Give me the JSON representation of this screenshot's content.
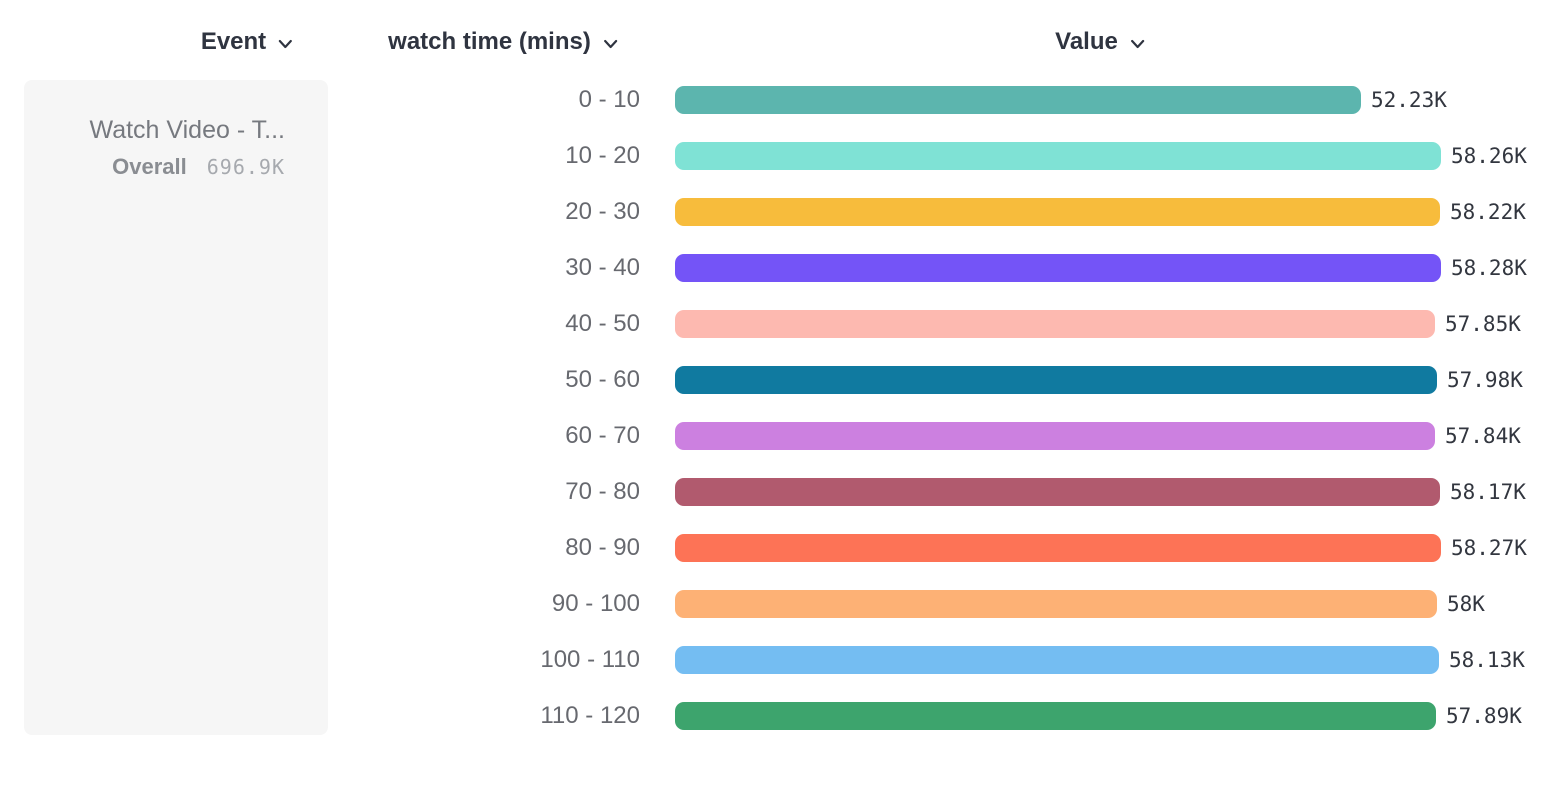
{
  "header": {
    "columns": [
      {
        "label": "Event"
      },
      {
        "label": "watch time (mins)"
      },
      {
        "label": "Value"
      }
    ]
  },
  "event_card": {
    "title": "Watch Video - T...",
    "overall_label": "Overall",
    "overall_value": "696.9K"
  },
  "chart_data": {
    "type": "bar",
    "orientation": "horizontal",
    "title": "",
    "xlabel": "Value",
    "ylabel": "watch time (mins)",
    "xlim": [
      0,
      58280
    ],
    "grid": false,
    "legend_position": "top-left event card",
    "categories": [
      "0 - 10",
      "10 - 20",
      "20 - 30",
      "30 - 40",
      "40 - 50",
      "50 - 60",
      "60 - 70",
      "70 - 80",
      "80 - 90",
      "90 - 100",
      "100 - 110",
      "110 - 120"
    ],
    "values": [
      52230,
      58260,
      58220,
      58280,
      57850,
      57980,
      57840,
      58170,
      58270,
      58000,
      58130,
      57890
    ],
    "value_labels": [
      "52.23K",
      "58.26K",
      "58.22K",
      "58.28K",
      "57.85K",
      "57.98K",
      "57.84K",
      "58.17K",
      "58.27K",
      "58K",
      "58.13K",
      "57.89K"
    ],
    "bar_colors": [
      "#5cb5ae",
      "#7fe2d5",
      "#f7bc3c",
      "#7454f7",
      "#fdb9b0",
      "#107aa0",
      "#cc80e0",
      "#b15a6e",
      "#fd7356",
      "#fdb175",
      "#74bdf2",
      "#3da46d"
    ]
  }
}
